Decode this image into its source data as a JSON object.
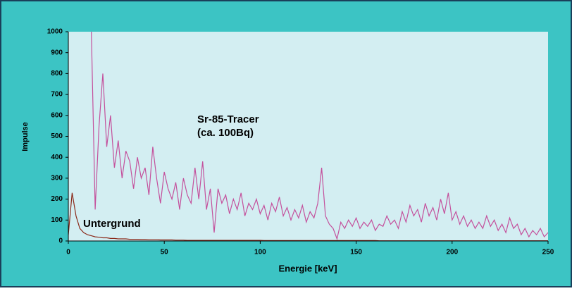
{
  "chart_data": {
    "type": "line",
    "xlabel": "Energie [keV]",
    "ylabel": "Impulse",
    "annotations": [
      "Sr-85-Tracer",
      "(ca. 100Bq)",
      "Untergrund"
    ],
    "xlim": [
      0,
      250
    ],
    "xticks": [
      0,
      50,
      100,
      150,
      200,
      250
    ],
    "ylim": [
      0,
      1000
    ],
    "yticks": [
      0,
      100,
      200,
      300,
      400,
      500,
      600,
      700,
      800,
      900,
      1000
    ],
    "grid": false,
    "x": [
      0,
      2,
      4,
      6,
      8,
      10,
      12,
      14,
      16,
      18,
      20,
      22,
      24,
      26,
      28,
      30,
      32,
      34,
      36,
      38,
      40,
      42,
      44,
      46,
      48,
      50,
      52,
      54,
      56,
      58,
      60,
      62,
      64,
      66,
      68,
      70,
      72,
      74,
      76,
      78,
      80,
      82,
      84,
      86,
      88,
      90,
      92,
      94,
      96,
      98,
      100,
      102,
      104,
      106,
      108,
      110,
      112,
      114,
      116,
      118,
      120,
      122,
      124,
      126,
      128,
      130,
      132,
      134,
      136,
      138,
      140,
      142,
      144,
      146,
      148,
      150,
      152,
      154,
      156,
      158,
      160,
      162,
      164,
      166,
      168,
      170,
      172,
      174,
      176,
      178,
      180,
      182,
      184,
      186,
      188,
      190,
      192,
      194,
      196,
      198,
      200,
      202,
      204,
      206,
      208,
      210,
      212,
      214,
      216,
      218,
      220,
      222,
      224,
      226,
      228,
      230,
      232,
      234,
      236,
      238,
      240,
      242,
      244,
      246,
      248,
      250
    ],
    "series": [
      {
        "color": "#c4509c",
        "values": [
          null,
          null,
          null,
          null,
          null,
          null,
          1000,
          150,
          550,
          800,
          450,
          600,
          350,
          480,
          300,
          430,
          380,
          250,
          400,
          300,
          350,
          220,
          450,
          300,
          180,
          330,
          250,
          200,
          280,
          150,
          300,
          220,
          180,
          350,
          200,
          380,
          150,
          250,
          40,
          250,
          180,
          220,
          130,
          200,
          150,
          230,
          120,
          180,
          150,
          200,
          130,
          170,
          100,
          180,
          140,
          210,
          120,
          160,
          100,
          150,
          110,
          170,
          90,
          140,
          110,
          180,
          350,
          120,
          80,
          60,
          10,
          90,
          60,
          100,
          70,
          110,
          60,
          90,
          70,
          100,
          50,
          80,
          70,
          120,
          80,
          100,
          60,
          140,
          90,
          170,
          120,
          150,
          90,
          180,
          120,
          160,
          100,
          200,
          130,
          230,
          100,
          140,
          80,
          120,
          70,
          100,
          60,
          90,
          60,
          120,
          70,
          100,
          50,
          80,
          40,
          110,
          60,
          80,
          30,
          60,
          20,
          50,
          30,
          60,
          20,
          40
        ]
      },
      {
        "color": "#8b2a1a",
        "values": [
          30,
          230,
          120,
          60,
          40,
          30,
          25,
          20,
          18,
          15,
          15,
          12,
          12,
          10,
          10,
          10,
          8,
          8,
          8,
          7,
          7,
          6,
          6,
          6,
          5,
          5,
          5,
          5,
          4,
          4,
          4,
          3,
          3,
          3,
          3,
          3,
          3,
          3,
          3,
          3,
          3,
          3,
          3,
          3,
          3,
          3,
          3,
          3,
          3,
          3,
          3,
          2,
          2,
          2,
          2,
          2,
          2,
          2,
          2,
          2,
          2,
          2,
          2,
          2,
          2,
          2,
          2,
          2,
          2,
          2,
          2,
          2,
          2,
          2,
          2,
          2,
          2,
          2,
          2,
          2,
          2,
          1,
          1,
          1,
          1,
          1,
          1,
          1,
          1,
          1,
          1,
          1,
          1,
          1,
          1,
          1,
          1,
          1,
          1,
          1,
          1,
          1,
          1,
          1,
          1,
          1,
          1,
          1,
          1,
          1,
          1,
          1,
          1,
          1,
          1,
          1,
          1,
          1,
          1,
          1,
          1,
          1,
          1,
          1,
          1,
          1
        ]
      }
    ]
  }
}
